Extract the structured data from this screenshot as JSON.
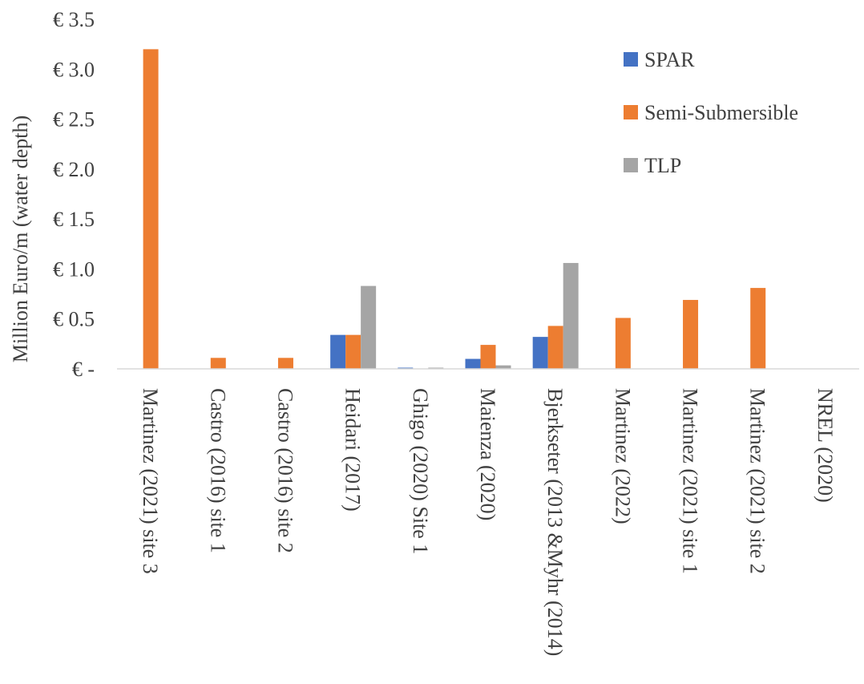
{
  "chart_data": {
    "type": "bar",
    "title": "",
    "xlabel": "",
    "ylabel": "Million Euro/m (water depth)",
    "ylim": [
      0,
      3.5
    ],
    "yticks": [
      0,
      0.5,
      1.0,
      1.5,
      2.0,
      2.5,
      3.0,
      3.5
    ],
    "ytick_labels": [
      "€ -",
      "€ 0.5",
      "€ 1.0",
      "€ 1.5",
      "€ 2.0",
      "€ 2.5",
      "€ 3.0",
      "€ 3.5"
    ],
    "grid": false,
    "legend_position": "top-right",
    "categories": [
      "Martinez (2021) site 3",
      "Castro (2016) site 1",
      "Castro (2016) site 2",
      "Heidari (2017)",
      "Ghigo (2020) Site 1",
      "Maienza (2020)",
      "Bjerkseter (2013 &Myhr (2014)",
      "Martinez (2022)",
      "Martinez (2021) site 1",
      "Martinez (2021) site 2",
      "NREL (2020)"
    ],
    "series": [
      {
        "name": "SPAR",
        "color": "#4472C4",
        "values": [
          0,
          0,
          0,
          0.34,
          0.012,
          0.1,
          0.32,
          0,
          0,
          0,
          0
        ]
      },
      {
        "name": "Semi-Submersible",
        "color": "#ED7D31",
        "values": [
          3.2,
          0.11,
          0.11,
          0.34,
          0,
          0.24,
          0.43,
          0.51,
          0.69,
          0.81,
          0
        ]
      },
      {
        "name": "TLP",
        "color": "#A5A5A5",
        "values": [
          0,
          0,
          0,
          0.83,
          0.012,
          0.035,
          1.06,
          0,
          0,
          0,
          0
        ]
      }
    ]
  }
}
